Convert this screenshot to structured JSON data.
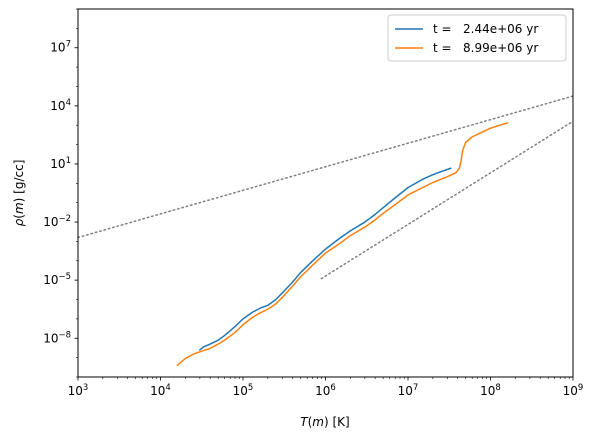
{
  "chart_data": {
    "type": "line",
    "title": "",
    "xlabel": "T(m) [K]",
    "ylabel": "ρ(m) [g/cc]",
    "xlabel_parts": {
      "var": "T",
      "arg": "m",
      "unit": "[K]"
    },
    "ylabel_parts": {
      "var": "ρ",
      "arg": "m",
      "unit": "[g/cc]"
    },
    "xscale": "log",
    "yscale": "log",
    "xlim": [
      1000,
      1000000000
    ],
    "ylim": [
      1e-10,
      1000000000.0
    ],
    "x_ticks": [
      {
        "value": 1000,
        "exp": "3"
      },
      {
        "value": 10000,
        "exp": "4"
      },
      {
        "value": 100000,
        "exp": "5"
      },
      {
        "value": 1000000,
        "exp": "6"
      },
      {
        "value": 10000000,
        "exp": "7"
      },
      {
        "value": 100000000,
        "exp": "8"
      },
      {
        "value": 1000000000,
        "exp": "9"
      }
    ],
    "y_ticks": [
      {
        "value": 1e-08,
        "exp": "−8"
      },
      {
        "value": 1e-05,
        "exp": "−5"
      },
      {
        "value": 0.01,
        "exp": "−2"
      },
      {
        "value": 10,
        "exp": "1"
      },
      {
        "value": 10000,
        "exp": "4"
      },
      {
        "value": 10000000,
        "exp": "7"
      }
    ],
    "grid": false,
    "legend_position": "top-right",
    "series": [
      {
        "name": "t =   2.44e+06 yr",
        "color": "#1f77b4",
        "points": [
          [
            30000,
            2.5e-09
          ],
          [
            33000,
            3.5e-09
          ],
          [
            40000,
            5e-09
          ],
          [
            50000,
            8e-09
          ],
          [
            60000,
            1.4e-08
          ],
          [
            80000,
            4e-08
          ],
          [
            100000,
            1e-07
          ],
          [
            130000,
            2.2e-07
          ],
          [
            160000,
            3.5e-07
          ],
          [
            200000,
            5e-07
          ],
          [
            250000,
            1e-06
          ],
          [
            300000,
            2.2e-06
          ],
          [
            400000,
            8e-06
          ],
          [
            500000,
            2.5e-05
          ],
          [
            700000,
            0.0001
          ],
          [
            1000000,
            0.0004
          ],
          [
            1500000,
            0.0015
          ],
          [
            2000000,
            0.0035
          ],
          [
            3000000,
            0.01
          ],
          [
            4000000,
            0.025
          ],
          [
            5000000,
            0.055
          ],
          [
            7000000,
            0.18
          ],
          [
            10000000,
            0.6
          ],
          [
            15000000,
            1.6
          ],
          [
            20000000,
            2.8
          ],
          [
            25000000,
            4
          ],
          [
            33000000,
            6
          ]
        ]
      },
      {
        "name": "t =   8.99e+06 yr",
        "color": "#ff7f0e",
        "points": [
          [
            16000,
            4e-10
          ],
          [
            20000,
            9e-10
          ],
          [
            25000,
            1.5e-09
          ],
          [
            30000,
            2e-09
          ],
          [
            40000,
            3e-09
          ],
          [
            50000,
            5e-09
          ],
          [
            60000,
            8e-09
          ],
          [
            80000,
            2e-08
          ],
          [
            100000,
            5e-08
          ],
          [
            130000,
            1.2e-07
          ],
          [
            160000,
            2e-07
          ],
          [
            200000,
            3.2e-07
          ],
          [
            250000,
            6e-07
          ],
          [
            300000,
            1.3e-06
          ],
          [
            400000,
            5e-06
          ],
          [
            500000,
            1.5e-05
          ],
          [
            700000,
            6e-05
          ],
          [
            1000000,
            0.00025
          ],
          [
            1500000,
            0.0008
          ],
          [
            2000000,
            0.002
          ],
          [
            3000000,
            0.0055
          ],
          [
            4000000,
            0.013
          ],
          [
            5000000,
            0.028
          ],
          [
            7000000,
            0.08
          ],
          [
            10000000,
            0.25
          ],
          [
            15000000,
            0.6
          ],
          [
            20000000,
            1.1
          ],
          [
            30000000,
            2.2
          ],
          [
            38000000,
            3.5
          ],
          [
            42000000,
            6
          ],
          [
            44000000,
            15
          ],
          [
            46000000,
            50
          ],
          [
            50000000,
            130
          ],
          [
            60000000,
            250
          ],
          [
            80000000,
            450
          ],
          [
            100000000,
            700
          ],
          [
            130000000,
            1000
          ],
          [
            160000000,
            1300
          ]
        ]
      }
    ],
    "reference_lines": [
      {
        "style": "dotted",
        "color": "#808080",
        "points": [
          [
            1000,
            0.0016
          ],
          [
            1000000000,
            32000
          ]
        ]
      },
      {
        "style": "dotted",
        "color": "#808080",
        "points": [
          [
            890000,
            1.2e-05
          ],
          [
            1000000000,
            1600
          ]
        ]
      }
    ]
  }
}
